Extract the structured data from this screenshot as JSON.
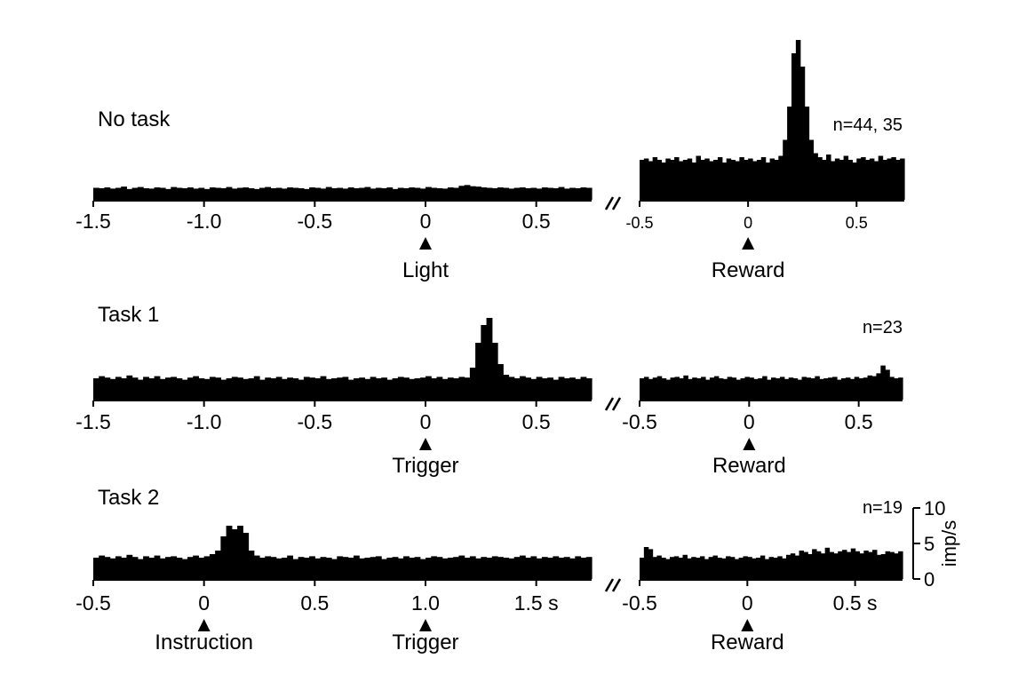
{
  "chart_data": [
    {
      "type": "bar",
      "panel_label": "No task",
      "event_label": "Light",
      "n_label": "",
      "x_ticks": [
        {
          "v": -1.5,
          "t": "-1.5"
        },
        {
          "v": -1.0,
          "t": "-1.0"
        },
        {
          "v": -0.5,
          "t": "-0.5"
        },
        {
          "v": 0,
          "t": "0"
        },
        {
          "v": 0.5,
          "t": "0.5"
        }
      ],
      "xlim": [
        -1.5,
        0.75
      ],
      "ylim": [
        0,
        12
      ],
      "bin_width": 0.025,
      "values": [
        3.0,
        2.9,
        3.1,
        2.8,
        3.0,
        3.3,
        2.7,
        3.0,
        3.2,
        2.9,
        2.8,
        3.1,
        3.0,
        2.7,
        3.2,
        3.0,
        2.9,
        3.1,
        2.8,
        3.0,
        2.7,
        3.1,
        3.0,
        2.9,
        3.2,
        2.8,
        3.0,
        3.1,
        2.9,
        2.7,
        3.0,
        3.2,
        2.9,
        3.0,
        2.8,
        3.1,
        3.0,
        2.9,
        2.7,
        3.1,
        3.0,
        2.8,
        3.2,
        2.9,
        3.0,
        2.8,
        3.1,
        2.9,
        3.0,
        3.2,
        2.8,
        3.0,
        2.9,
        3.1,
        2.7,
        3.0,
        2.9,
        3.1,
        3.0,
        2.8,
        3.2,
        3.0,
        2.9,
        2.8,
        3.1,
        3.0,
        3.5,
        3.7,
        3.4,
        3.3,
        3.1,
        3.0,
        2.9,
        3.1,
        3.0,
        2.8,
        3.0,
        3.1,
        2.9,
        3.0,
        2.8,
        3.1,
        3.0,
        2.9,
        3.2,
        2.8,
        3.0,
        2.9,
        3.1,
        3.0
      ]
    },
    {
      "type": "bar",
      "panel_label": "",
      "event_label": "Reward",
      "n_label": "n=44, 35",
      "x_ticks": [
        {
          "v": -0.5,
          "t": "-0.5"
        },
        {
          "v": 0,
          "t": "0"
        },
        {
          "v": 0.5,
          "t": "0.5"
        }
      ],
      "xlim": [
        -0.5,
        0.72
      ],
      "ylim": [
        0,
        12
      ],
      "bin_width": 0.02,
      "values": [
        3.0,
        3.1,
        2.9,
        3.2,
        3.0,
        2.8,
        3.1,
        3.0,
        3.2,
        2.9,
        3.0,
        3.1,
        2.8,
        3.3,
        3.0,
        3.1,
        2.9,
        3.0,
        3.2,
        2.8,
        3.1,
        3.0,
        2.9,
        3.2,
        3.0,
        3.1,
        2.9,
        3.0,
        3.2,
        2.8,
        3.1,
        3.0,
        3.3,
        4.5,
        7.0,
        11.0,
        12.0,
        10.0,
        7.0,
        4.5,
        3.5,
        3.2,
        3.0,
        3.4,
        2.9,
        3.1,
        3.0,
        3.3,
        3.0,
        2.8,
        3.1,
        3.2,
        3.0,
        3.1,
        2.9,
        3.3,
        3.0,
        3.1,
        3.2,
        3.0,
        3.1
      ]
    },
    {
      "type": "bar",
      "panel_label": "Task 1",
      "event_label": "Trigger",
      "n_label": "",
      "x_ticks": [
        {
          "v": -1.5,
          "t": "-1.5"
        },
        {
          "v": -1.0,
          "t": "-1.0"
        },
        {
          "v": -0.5,
          "t": "-0.5"
        },
        {
          "v": 0,
          "t": "0"
        },
        {
          "v": 0.5,
          "t": "0.5"
        }
      ],
      "xlim": [
        -1.5,
        0.75
      ],
      "ylim": [
        0,
        12
      ],
      "bin_width": 0.025,
      "values": [
        3.0,
        3.3,
        3.1,
        2.9,
        3.2,
        3.0,
        3.4,
        3.1,
        2.8,
        3.2,
        3.0,
        3.3,
        2.9,
        3.1,
        3.2,
        3.0,
        2.8,
        3.1,
        3.3,
        3.0,
        2.9,
        3.2,
        3.1,
        2.8,
        3.0,
        3.2,
        3.1,
        2.9,
        3.0,
        3.3,
        2.8,
        3.1,
        3.0,
        3.2,
        2.9,
        3.1,
        3.0,
        2.8,
        3.2,
        3.1,
        3.0,
        3.3,
        2.9,
        3.0,
        3.1,
        3.2,
        2.8,
        3.0,
        3.1,
        2.9,
        3.2,
        3.0,
        3.1,
        2.8,
        3.0,
        3.2,
        3.1,
        2.9,
        3.0,
        3.1,
        3.3,
        3.0,
        3.2,
        2.9,
        3.1,
        3.0,
        3.2,
        3.1,
        4.5,
        8.0,
        10.5,
        11.5,
        8.0,
        5.0,
        3.5,
        3.2,
        3.0,
        3.3,
        3.1,
        2.9,
        3.2,
        3.0,
        3.1,
        2.8,
        3.2,
        3.0,
        3.1,
        2.9,
        3.2,
        3.0
      ]
    },
    {
      "type": "bar",
      "panel_label": "",
      "event_label": "Reward",
      "n_label": "n=23",
      "x_ticks": [
        {
          "v": -0.5,
          "t": "-0.5"
        },
        {
          "v": 0,
          "t": "0"
        },
        {
          "v": 0.5,
          "t": "0.5"
        }
      ],
      "xlim": [
        -0.5,
        0.7
      ],
      "ylim": [
        0,
        12
      ],
      "bin_width": 0.02,
      "values": [
        3.0,
        3.2,
        2.9,
        3.1,
        3.3,
        3.0,
        2.8,
        3.1,
        3.2,
        3.0,
        3.4,
        2.9,
        3.1,
        3.0,
        3.2,
        2.8,
        3.1,
        3.3,
        3.0,
        2.9,
        3.2,
        3.1,
        2.8,
        3.0,
        3.2,
        3.1,
        2.9,
        3.0,
        3.3,
        2.8,
        3.1,
        3.0,
        3.2,
        2.9,
        3.1,
        3.0,
        2.8,
        3.2,
        3.1,
        3.0,
        3.3,
        2.9,
        3.0,
        3.1,
        3.2,
        2.8,
        3.0,
        3.1,
        2.9,
        3.2,
        3.0,
        3.1,
        3.4,
        3.3,
        3.7,
        4.8,
        4.2,
        3.2,
        3.0,
        3.1
      ]
    },
    {
      "type": "bar",
      "panel_label": "Task 2",
      "event_label": "Instruction",
      "event2_label": "Trigger",
      "event2_x": 1.0,
      "n_label": "",
      "x_ticks": [
        {
          "v": -0.5,
          "t": "-0.5"
        },
        {
          "v": 0,
          "t": "0"
        },
        {
          "v": 0.5,
          "t": "0.5"
        },
        {
          "v": 1.0,
          "t": "1.0"
        },
        {
          "v": 1.5,
          "t": "1.5 s"
        }
      ],
      "xlim": [
        -0.5,
        1.75
      ],
      "ylim": [
        0,
        12
      ],
      "bin_width": 0.025,
      "values": [
        3.0,
        3.3,
        3.1,
        2.9,
        3.2,
        3.0,
        3.4,
        3.1,
        2.8,
        3.2,
        3.0,
        3.3,
        2.9,
        3.1,
        3.2,
        3.0,
        2.8,
        3.1,
        3.3,
        3.0,
        3.2,
        3.5,
        4.0,
        6.0,
        7.5,
        7.0,
        7.5,
        6.5,
        4.0,
        3.3,
        3.0,
        3.2,
        3.1,
        2.9,
        3.0,
        3.3,
        2.8,
        3.1,
        3.0,
        3.2,
        2.9,
        3.1,
        3.0,
        2.8,
        3.2,
        3.1,
        3.0,
        3.3,
        2.9,
        3.0,
        3.1,
        3.2,
        2.8,
        3.0,
        3.1,
        2.9,
        3.2,
        3.0,
        3.1,
        2.8,
        3.0,
        3.2,
        3.1,
        2.9,
        3.0,
        3.1,
        3.3,
        3.0,
        3.2,
        2.9,
        3.1,
        3.0,
        3.2,
        3.1,
        3.0,
        2.9,
        3.1,
        3.3,
        3.0,
        3.2,
        2.9,
        3.1,
        3.0,
        3.2,
        3.0,
        3.1,
        2.9,
        3.2,
        3.0,
        3.1
      ]
    },
    {
      "type": "bar",
      "panel_label": "",
      "event_label": "Reward",
      "n_label": "n=19",
      "x_ticks": [
        {
          "v": -0.5,
          "t": "-0.5"
        },
        {
          "v": 0,
          "t": "0"
        },
        {
          "v": 0.5,
          "t": "0.5 s"
        }
      ],
      "xlim": [
        -0.5,
        0.72
      ],
      "ylim": [
        0,
        12
      ],
      "bin_width": 0.02,
      "y_scale_bar": {
        "ticks": [
          {
            "v": 0,
            "t": "0"
          },
          {
            "v": 5,
            "t": "5"
          },
          {
            "v": 10,
            "t": "10"
          }
        ],
        "unit": "imp/s"
      },
      "values": [
        3.0,
        4.5,
        4.2,
        3.1,
        3.3,
        3.0,
        2.8,
        3.1,
        3.2,
        3.0,
        3.4,
        2.9,
        3.1,
        3.0,
        3.2,
        2.8,
        3.1,
        3.3,
        3.0,
        2.9,
        3.2,
        3.1,
        2.8,
        3.0,
        3.2,
        3.1,
        2.9,
        3.0,
        3.3,
        2.8,
        3.1,
        3.0,
        3.2,
        2.9,
        3.4,
        3.6,
        3.3,
        4.0,
        3.8,
        3.5,
        4.2,
        3.9,
        3.6,
        4.4,
        3.8,
        3.6,
        3.9,
        4.1,
        3.8,
        4.3,
        3.9,
        3.6,
        4.0,
        3.8,
        4.1,
        3.4,
        3.5,
        3.9,
        3.8,
        3.6,
        3.9
      ]
    }
  ]
}
